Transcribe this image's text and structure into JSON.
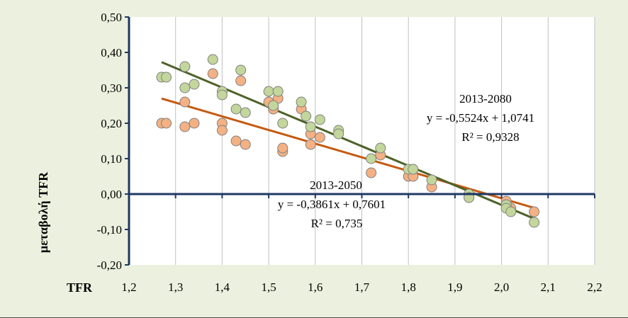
{
  "chart_data": {
    "type": "scatter",
    "title": "",
    "xlabel": "TFR",
    "ylabel": "μεταβολή TFR",
    "xlim": [
      1.2,
      2.2
    ],
    "ylim": [
      -0.2,
      0.5
    ],
    "xticks": [
      "1,2",
      "1,3",
      "1,4",
      "1,5",
      "1,6",
      "1,7",
      "1,8",
      "1,9",
      "2,0",
      "2,1",
      "2,2"
    ],
    "yticks": [
      "-0,20",
      "-0,10",
      "0,00",
      "0,10",
      "0,20",
      "0,30",
      "0,40",
      "0,50"
    ],
    "grid": "vertical",
    "legend": "none",
    "series": [
      {
        "name": "2013-2050",
        "color": "#f4b183",
        "trend_color": "#c55a11",
        "points": [
          [
            1.27,
            0.2
          ],
          [
            1.28,
            0.2
          ],
          [
            1.32,
            0.19
          ],
          [
            1.32,
            0.26
          ],
          [
            1.34,
            0.2
          ],
          [
            1.38,
            0.34
          ],
          [
            1.4,
            0.2
          ],
          [
            1.4,
            0.18
          ],
          [
            1.43,
            0.15
          ],
          [
            1.44,
            0.32
          ],
          [
            1.45,
            0.14
          ],
          [
            1.5,
            0.26
          ],
          [
            1.51,
            0.24
          ],
          [
            1.52,
            0.27
          ],
          [
            1.53,
            0.12
          ],
          [
            1.53,
            0.13
          ],
          [
            1.57,
            0.24
          ],
          [
            1.59,
            0.17
          ],
          [
            1.59,
            0.14
          ],
          [
            1.61,
            0.16
          ],
          [
            1.72,
            0.06
          ],
          [
            1.74,
            0.11
          ],
          [
            1.8,
            0.05
          ],
          [
            1.81,
            0.05
          ],
          [
            1.85,
            0.02
          ],
          [
            1.93,
            -0.01
          ],
          [
            2.01,
            -0.02
          ],
          [
            2.02,
            -0.04
          ],
          [
            2.07,
            -0.05
          ]
        ],
        "trend": {
          "x_range": [
            1.27,
            2.07
          ],
          "slope": -0.3861,
          "intercept": 0.7601
        },
        "label_year": "2013-2050",
        "label_equation": "y = -0,3861x + 0,7601",
        "label_r2": "R² = 0,735"
      },
      {
        "name": "2013-2080",
        "color": "#c3d69b",
        "trend_color": "#4f6228",
        "points": [
          [
            1.27,
            0.33
          ],
          [
            1.28,
            0.33
          ],
          [
            1.32,
            0.3
          ],
          [
            1.32,
            0.36
          ],
          [
            1.34,
            0.31
          ],
          [
            1.38,
            0.38
          ],
          [
            1.4,
            0.29
          ],
          [
            1.4,
            0.28
          ],
          [
            1.43,
            0.24
          ],
          [
            1.44,
            0.35
          ],
          [
            1.45,
            0.23
          ],
          [
            1.5,
            0.29
          ],
          [
            1.51,
            0.25
          ],
          [
            1.52,
            0.29
          ],
          [
            1.53,
            0.2
          ],
          [
            1.57,
            0.26
          ],
          [
            1.58,
            0.22
          ],
          [
            1.59,
            0.19
          ],
          [
            1.61,
            0.21
          ],
          [
            1.65,
            0.18
          ],
          [
            1.65,
            0.17
          ],
          [
            1.72,
            0.1
          ],
          [
            1.74,
            0.13
          ],
          [
            1.8,
            0.07
          ],
          [
            1.81,
            0.07
          ],
          [
            1.85,
            0.04
          ],
          [
            1.93,
            0.0
          ],
          [
            1.93,
            -0.01
          ],
          [
            2.01,
            -0.03
          ],
          [
            2.01,
            -0.04
          ],
          [
            2.02,
            -0.05
          ],
          [
            2.07,
            -0.08
          ]
        ],
        "trend": {
          "x_range": [
            1.27,
            2.07
          ],
          "slope": -0.5524,
          "intercept": 1.0741
        },
        "label_year": "2013-2080",
        "label_equation": "y = -0,5524x + 1,0741",
        "label_r2": "R² = 0,9328"
      }
    ]
  }
}
